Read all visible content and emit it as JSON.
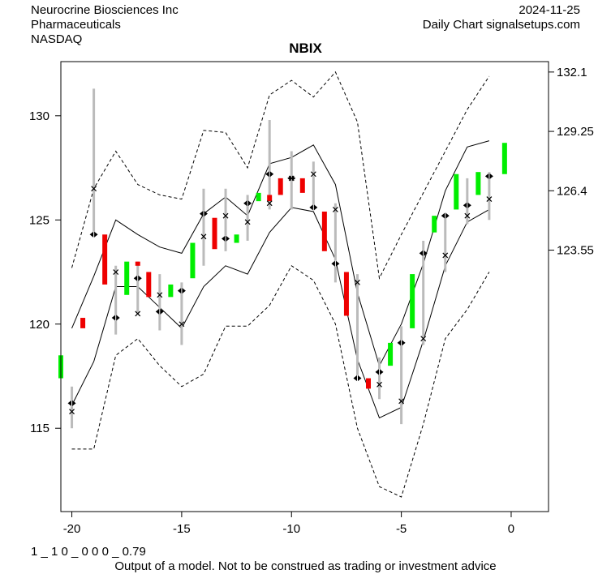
{
  "header": {
    "company": "Neurocrine Biosciences Inc",
    "sector": "Pharmaceuticals",
    "exchange": "NASDAQ",
    "date": "2024-11-25",
    "source": "Daily Chart signalsetups.com"
  },
  "footer": {
    "code": "1 _ 1 0 _ 0 0 0 _ 0.79",
    "disclaimer": "Output of a model. Not to be construed as trading or investment advice"
  },
  "colors": {
    "up": "#00ee00",
    "down": "#ee0000",
    "range": "#bbbbbb",
    "band": "#000000"
  },
  "chart_data": {
    "type": "candlestick",
    "title": "NBIX",
    "xlim": [
      -20.5,
      1.7
    ],
    "ylim": [
      111,
      132.6
    ],
    "x_ticks": [
      -20,
      -15,
      -10,
      -5,
      0
    ],
    "y_ticks_left": [
      115,
      120,
      125,
      130
    ],
    "y_ticks_right": [
      123.55,
      126.4,
      129.25,
      132.1
    ],
    "y_tick_labels_right": [
      "123.55",
      "126.4",
      "129.25",
      "132.1"
    ],
    "candles": [
      {
        "x": -20.5,
        "open": 117.4,
        "close": 118.5,
        "dir": "up"
      },
      {
        "x": -19.5,
        "open": 120.3,
        "close": 119.8,
        "dir": "down"
      },
      {
        "x": -18.5,
        "open": 124.3,
        "close": 121.9,
        "dir": "down"
      },
      {
        "x": -17.5,
        "open": 121.4,
        "close": 123.0,
        "dir": "up"
      },
      {
        "x": -17.0,
        "open": 123.0,
        "close": 122.8,
        "dir": "down"
      },
      {
        "x": -16.5,
        "open": 122.5,
        "close": 121.3,
        "dir": "down"
      },
      {
        "x": -15.5,
        "open": 121.3,
        "close": 121.9,
        "dir": "up"
      },
      {
        "x": -14.5,
        "open": 122.2,
        "close": 123.9,
        "dir": "up"
      },
      {
        "x": -13.5,
        "open": 125.1,
        "close": 123.6,
        "dir": "down"
      },
      {
        "x": -12.5,
        "open": 123.9,
        "close": 124.3,
        "dir": "up"
      },
      {
        "x": -11.5,
        "open": 125.9,
        "close": 126.3,
        "dir": "up"
      },
      {
        "x": -11.0,
        "open": 126.2,
        "close": 125.9,
        "dir": "down"
      },
      {
        "x": -10.5,
        "open": 127.0,
        "close": 126.2,
        "dir": "down"
      },
      {
        "x": -9.5,
        "open": 127.0,
        "close": 126.3,
        "dir": "down"
      },
      {
        "x": -8.5,
        "open": 125.4,
        "close": 123.5,
        "dir": "down"
      },
      {
        "x": -7.5,
        "open": 122.5,
        "close": 120.4,
        "dir": "down"
      },
      {
        "x": -6.5,
        "open": 117.4,
        "close": 116.9,
        "dir": "down"
      },
      {
        "x": -5.5,
        "open": 118.0,
        "close": 119.1,
        "dir": "up"
      },
      {
        "x": -4.5,
        "open": 119.8,
        "close": 122.4,
        "dir": "up"
      },
      {
        "x": -3.5,
        "open": 124.4,
        "close": 125.2,
        "dir": "up"
      },
      {
        "x": -2.5,
        "open": 125.5,
        "close": 127.2,
        "dir": "up"
      },
      {
        "x": -1.5,
        "open": 126.2,
        "close": 127.3,
        "dir": "up"
      },
      {
        "x": -0.3,
        "open": 127.2,
        "close": 128.7,
        "dir": "up"
      }
    ],
    "ranges": [
      {
        "x": -20,
        "low": 115.0,
        "high": 117.0,
        "mid": 116.2,
        "xmark": 115.8
      },
      {
        "x": -19,
        "low": 124.3,
        "high": 131.3,
        "mid": 124.3,
        "xmark": 126.5
      },
      {
        "x": -18,
        "low": 119.5,
        "high": 122.8,
        "mid": 120.3,
        "xmark": 122.5
      },
      {
        "x": -17,
        "low": 120.5,
        "high": 123.0,
        "mid": 122.2,
        "xmark": 120.5
      },
      {
        "x": -16,
        "low": 119.7,
        "high": 122.4,
        "mid": 120.6,
        "xmark": 121.4
      },
      {
        "x": -15,
        "low": 119.0,
        "high": 122.0,
        "mid": 121.6,
        "xmark": 120.0
      },
      {
        "x": -14,
        "low": 122.8,
        "high": 126.5,
        "mid": 125.3,
        "xmark": 124.2
      },
      {
        "x": -13,
        "low": 123.5,
        "high": 126.5,
        "mid": 124.1,
        "xmark": 125.2
      },
      {
        "x": -12,
        "low": 124.0,
        "high": 126.2,
        "mid": 125.8,
        "xmark": 124.9
      },
      {
        "x": -11,
        "low": 125.5,
        "high": 129.8,
        "mid": 127.2,
        "xmark": 125.8
      },
      {
        "x": -10,
        "low": 125.5,
        "high": 128.3,
        "mid": 127.0,
        "xmark": 127.0
      },
      {
        "x": -9,
        "low": 125.5,
        "high": 127.8,
        "mid": 125.6,
        "xmark": 127.2
      },
      {
        "x": -8,
        "low": 122.0,
        "high": 125.8,
        "mid": 122.9,
        "xmark": 125.5
      },
      {
        "x": -7,
        "low": 117.4,
        "high": 122.4,
        "mid": 117.4,
        "xmark": 122.0
      },
      {
        "x": -6,
        "low": 116.4,
        "high": 118.4,
        "mid": 117.7,
        "xmark": 117.1
      },
      {
        "x": -5,
        "low": 115.2,
        "high": 119.9,
        "mid": 119.1,
        "xmark": 116.3
      },
      {
        "x": -4,
        "low": 119.0,
        "high": 124.0,
        "mid": 123.4,
        "xmark": 119.3
      },
      {
        "x": -3,
        "low": 122.5,
        "high": 125.2,
        "mid": 125.2,
        "xmark": 123.3
      },
      {
        "x": -2,
        "low": 124.8,
        "high": 127.0,
        "mid": 125.7,
        "xmark": 125.2
      },
      {
        "x": -1,
        "low": 125.0,
        "high": 127.3,
        "mid": 127.1,
        "xmark": 126.0
      }
    ],
    "bands": {
      "x": [
        -20,
        -19,
        -18,
        -17,
        -16,
        -15,
        -14,
        -13,
        -12,
        -11,
        -10,
        -9,
        -8,
        -7,
        -6,
        -5,
        -4,
        -3,
        -2,
        -1
      ],
      "outer_upper": [
        122.7,
        126.5,
        128.3,
        126.7,
        126.2,
        126.0,
        129.3,
        129.2,
        127.5,
        131.0,
        131.7,
        130.9,
        132.1,
        129.7,
        122.2,
        124.3,
        126.3,
        128.3,
        130.3,
        131.9
      ],
      "inner_upper": [
        119.8,
        122.3,
        125.0,
        124.3,
        123.7,
        123.4,
        125.3,
        126.1,
        125.2,
        127.7,
        128.0,
        128.6,
        126.7,
        121.5,
        118.0,
        120.0,
        122.9,
        126.4,
        128.5,
        128.8
      ],
      "inner_lower": [
        116.1,
        118.2,
        121.8,
        121.8,
        120.8,
        119.8,
        121.8,
        122.8,
        122.4,
        124.4,
        125.6,
        125.4,
        123.1,
        118.3,
        115.5,
        116.0,
        119.2,
        122.8,
        124.9,
        125.5
      ],
      "outer_lower": [
        114.0,
        114.0,
        118.5,
        119.3,
        118.0,
        117.0,
        117.6,
        119.9,
        119.9,
        120.9,
        122.8,
        122.1,
        120.0,
        115.0,
        112.2,
        111.7,
        115.2,
        119.3,
        120.7,
        122.5
      ]
    }
  }
}
